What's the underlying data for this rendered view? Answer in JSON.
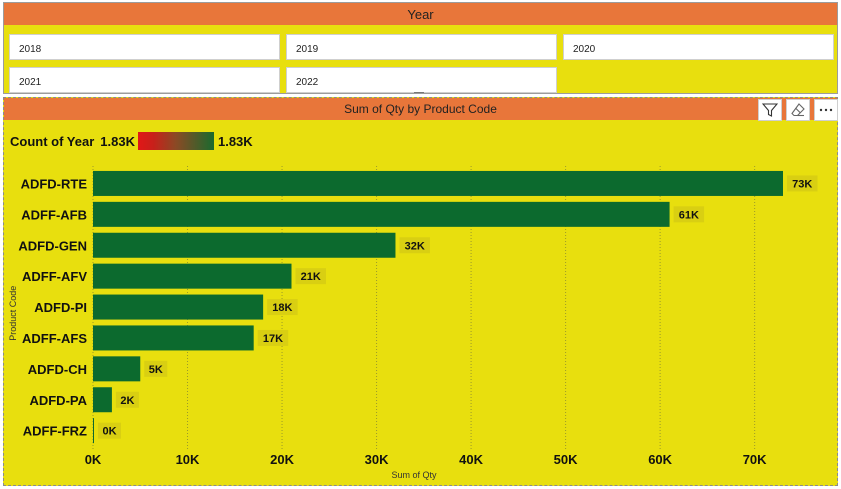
{
  "slicer": {
    "title": "Year",
    "options": [
      "2018",
      "2019",
      "2020",
      "2021",
      "2022"
    ]
  },
  "chart_panel": {
    "title": "Sum of Qty by Product Code",
    "toolbar": {
      "filter_icon": "filter-icon",
      "eraser_icon": "eraser-icon",
      "more_icon": "more-options-icon"
    },
    "legend": {
      "label": "Count of Year",
      "min": "1.83K",
      "max": "1.83K"
    }
  },
  "colors": {
    "header": "#e8763a",
    "background": "#e8df0e",
    "bar": "#0c6a2e",
    "label_bg": "#d9cf12"
  },
  "chart_data": {
    "type": "bar",
    "orientation": "horizontal",
    "title": "Sum of Qty by Product Code",
    "xlabel": "Sum of Qty",
    "ylabel": "Product Code",
    "categories": [
      "ADFD-RTE",
      "ADFF-AFB",
      "ADFD-GEN",
      "ADFF-AFV",
      "ADFD-PI",
      "ADFF-AFS",
      "ADFD-CH",
      "ADFD-PA",
      "ADFF-FRZ"
    ],
    "values": [
      73000,
      61000,
      32000,
      21000,
      18000,
      17000,
      5000,
      2000,
      0
    ],
    "data_labels": [
      "73K",
      "61K",
      "32K",
      "21K",
      "18K",
      "17K",
      "5K",
      "2K",
      "0K"
    ],
    "xlim": [
      0,
      73000
    ],
    "xticks": [
      0,
      10000,
      20000,
      30000,
      40000,
      50000,
      60000,
      70000
    ],
    "xtick_labels": [
      "0K",
      "10K",
      "20K",
      "30K",
      "40K",
      "50K",
      "60K",
      "70K"
    ],
    "grid": true
  }
}
